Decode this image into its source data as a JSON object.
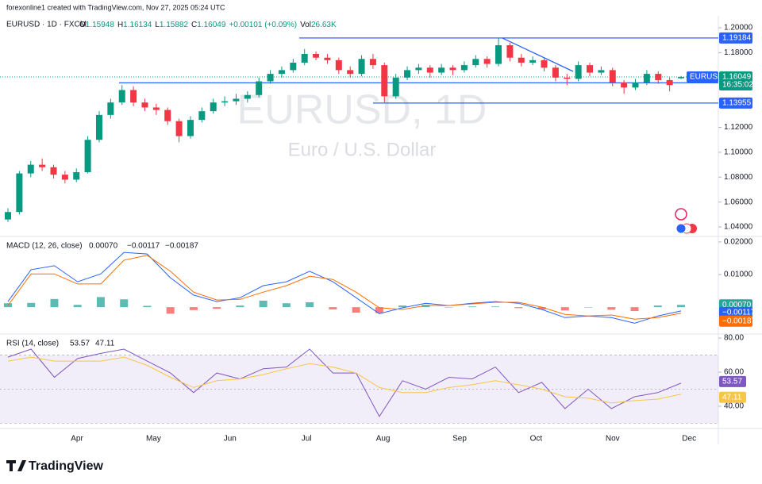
{
  "header": {
    "credit": "forexonline1 created with TradingView.com, Nov 27, 2025 05:24 UTC",
    "symbol_line": "EURUSD · 1D · FXCM",
    "ohlc": [
      "O",
      "1.15948",
      "H",
      "1.16134",
      "L",
      "1.15882",
      "C",
      "1.16049"
    ],
    "change": "+0.00101 (+0.09%)",
    "vol_label": "Vol",
    "vol": "26.63K",
    "logo": "TradingView"
  },
  "chart_data": [
    {
      "type": "candlestick",
      "title": "EURUSD, 1D",
      "subtitle": "Euro / U.S. Dollar",
      "symbol_label": "EURUSD",
      "up_color": "#089981",
      "down_color": "#f23645",
      "level_color": "#2962ff",
      "ylim": [
        1.033,
        1.2096
      ],
      "yticks": [
        {
          "value": 1.2,
          "label": "1.20000"
        },
        {
          "value": 1.18,
          "label": "1.18000"
        },
        {
          "value": 1.12,
          "label": "1.12000"
        },
        {
          "value": 1.1,
          "label": "1.10000"
        },
        {
          "value": 1.08,
          "label": "1.08000"
        },
        {
          "value": 1.06,
          "label": "1.06000"
        },
        {
          "value": 1.04,
          "label": "1.04000"
        }
      ],
      "x_labels": [
        "Apr",
        "May",
        "Jun",
        "Jul",
        "Aug",
        "Sep",
        "Oct",
        "Nov",
        "Dec"
      ],
      "levels": [
        1.19184,
        1.15581,
        1.13955
      ],
      "last_price": 1.16049,
      "countdown": "16:35:02",
      "ohlc": [
        [
          1.046,
          1.055,
          1.044,
          1.052
        ],
        [
          1.052,
          1.085,
          1.05,
          1.083
        ],
        [
          1.083,
          1.093,
          1.08,
          1.09
        ],
        [
          1.09,
          1.095,
          1.085,
          1.088
        ],
        [
          1.088,
          1.09,
          1.079,
          1.082
        ],
        [
          1.082,
          1.085,
          1.075,
          1.078
        ],
        [
          1.078,
          1.087,
          1.076,
          1.084
        ],
        [
          1.084,
          1.113,
          1.083,
          1.11
        ],
        [
          1.11,
          1.133,
          1.108,
          1.13
        ],
        [
          1.13,
          1.143,
          1.127,
          1.14
        ],
        [
          1.14,
          1.154,
          1.138,
          1.15
        ],
        [
          1.15,
          1.153,
          1.137,
          1.14
        ],
        [
          1.14,
          1.143,
          1.133,
          1.136
        ],
        [
          1.136,
          1.139,
          1.13,
          1.134
        ],
        [
          1.134,
          1.136,
          1.122,
          1.125
        ],
        [
          1.125,
          1.127,
          1.108,
          1.113
        ],
        [
          1.113,
          1.129,
          1.111,
          1.126
        ],
        [
          1.126,
          1.136,
          1.124,
          1.133
        ],
        [
          1.133,
          1.143,
          1.131,
          1.14
        ],
        [
          1.14,
          1.145,
          1.137,
          1.141
        ],
        [
          1.141,
          1.147,
          1.138,
          1.143
        ],
        [
          1.143,
          1.149,
          1.14,
          1.146
        ],
        [
          1.146,
          1.16,
          1.144,
          1.157
        ],
        [
          1.157,
          1.166,
          1.155,
          1.163
        ],
        [
          1.163,
          1.169,
          1.16,
          1.166
        ],
        [
          1.166,
          1.175,
          1.164,
          1.172
        ],
        [
          1.172,
          1.183,
          1.17,
          1.179
        ],
        [
          1.179,
          1.181,
          1.174,
          1.176
        ],
        [
          1.176,
          1.179,
          1.171,
          1.174
        ],
        [
          1.174,
          1.176,
          1.163,
          1.166
        ],
        [
          1.166,
          1.169,
          1.16,
          1.163
        ],
        [
          1.163,
          1.178,
          1.161,
          1.175
        ],
        [
          1.175,
          1.179,
          1.167,
          1.17
        ],
        [
          1.17,
          1.172,
          1.14,
          1.145
        ],
        [
          1.145,
          1.163,
          1.143,
          1.16
        ],
        [
          1.16,
          1.169,
          1.158,
          1.166
        ],
        [
          1.166,
          1.171,
          1.163,
          1.168
        ],
        [
          1.168,
          1.17,
          1.16,
          1.164
        ],
        [
          1.164,
          1.171,
          1.162,
          1.168
        ],
        [
          1.168,
          1.17,
          1.162,
          1.166
        ],
        [
          1.166,
          1.173,
          1.164,
          1.17
        ],
        [
          1.17,
          1.178,
          1.168,
          1.175
        ],
        [
          1.175,
          1.177,
          1.168,
          1.171
        ],
        [
          1.171,
          1.192,
          1.169,
          1.186
        ],
        [
          1.186,
          1.188,
          1.173,
          1.176
        ],
        [
          1.176,
          1.179,
          1.169,
          1.172
        ],
        [
          1.172,
          1.177,
          1.17,
          1.174
        ],
        [
          1.174,
          1.176,
          1.165,
          1.168
        ],
        [
          1.168,
          1.17,
          1.157,
          1.16
        ],
        [
          1.16,
          1.163,
          1.154,
          1.159
        ],
        [
          1.159,
          1.173,
          1.157,
          1.17
        ],
        [
          1.17,
          1.172,
          1.161,
          1.164
        ],
        [
          1.164,
          1.169,
          1.162,
          1.166
        ],
        [
          1.166,
          1.168,
          1.153,
          1.156
        ],
        [
          1.156,
          1.158,
          1.147,
          1.152
        ],
        [
          1.152,
          1.159,
          1.15,
          1.156
        ],
        [
          1.156,
          1.166,
          1.154,
          1.163
        ],
        [
          1.163,
          1.165,
          1.155,
          1.158
        ],
        [
          1.158,
          1.16,
          1.149,
          1.154
        ],
        [
          1.15948,
          1.16134,
          1.15882,
          1.16049
        ]
      ]
    },
    {
      "type": "macd",
      "title": "MACD (12, 26, close)",
      "readouts": [
        "0.00070",
        "−0.00117",
        "−0.00187"
      ],
      "ylim": [
        -0.008,
        0.0212
      ],
      "yticks": [
        {
          "value": 0.02,
          "label": "0.02000"
        },
        {
          "value": 0.01,
          "label": "0.01000"
        }
      ],
      "series": [
        {
          "kind": "histogram",
          "color": "#26a69a",
          "negative_color": "#ff5252",
          "values": [
            0.0012,
            0.0013,
            0.0025,
            0.0007,
            0.0031,
            0.0024,
            0.0004,
            -0.002,
            -0.0009,
            -0.0005,
            0.0005,
            0.002,
            0.0012,
            0.0015,
            -0.0007,
            -0.0017,
            -0.0018,
            0.0005,
            0.0007,
            0,
            0.0002,
            0.0002,
            -0.0003,
            -0.0007,
            -0.001,
            0,
            -0.0008,
            -0.0012,
            0.0005,
            0.0007
          ]
        },
        {
          "kind": "line",
          "color": "#2962ff",
          "values": [
            0.0017,
            0.0115,
            0.0127,
            0.0078,
            0.0102,
            0.0168,
            0.0163,
            0.009,
            0.0037,
            0.0017,
            0.0029,
            0.0066,
            0.0078,
            0.011,
            0.0078,
            0.0029,
            -0.002,
            -0.0002,
            0.0012,
            0.0005,
            0.0012,
            0.0017,
            0.0012,
            -0.0007,
            -0.0032,
            -0.0027,
            -0.0032,
            -0.0049,
            -0.0027,
            -0.00117
          ]
        },
        {
          "kind": "line",
          "color": "#ff6d00",
          "values": [
            0.0005,
            0.0102,
            0.0102,
            0.0071,
            0.0071,
            0.0144,
            0.0159,
            0.011,
            0.0046,
            0.0022,
            0.0024,
            0.0046,
            0.0066,
            0.0095,
            0.0085,
            0.0046,
            -0.0002,
            -0.0007,
            0.0005,
            0.0005,
            0.001,
            0.0015,
            0.0015,
            0,
            -0.0022,
            -0.0027,
            -0.0024,
            -0.0037,
            -0.0032,
            -0.00187
          ]
        }
      ]
    },
    {
      "type": "rsi",
      "title": "RSI (14, close)",
      "readouts": [
        "53.57",
        "47.11"
      ],
      "ylim": [
        27.9,
        81.9
      ],
      "yticks": [
        {
          "value": 80,
          "label": "80.00"
        },
        {
          "value": 60,
          "label": "60.00"
        },
        {
          "value": 40,
          "label": "40.00"
        }
      ],
      "band": [
        30,
        70
      ],
      "midline": 50,
      "series": [
        {
          "kind": "line",
          "color": "#7e57c2",
          "values": [
            68.8,
            73.5,
            57,
            68,
            71,
            73.5,
            66.5,
            59.5,
            48,
            59.5,
            56,
            62,
            63,
            73.5,
            59.5,
            59.5,
            34,
            55,
            50,
            57,
            56,
            63,
            48,
            54,
            38.6,
            50,
            38.6,
            45.6,
            48,
            53.57
          ]
        },
        {
          "kind": "line",
          "color": "#f7c548",
          "values": [
            66.5,
            68.8,
            66.5,
            66.5,
            66.5,
            68.8,
            64,
            57,
            51,
            55,
            56,
            58.6,
            62,
            65,
            63,
            59.5,
            51,
            48,
            48,
            51,
            52.6,
            55,
            52.6,
            50,
            45.6,
            44.7,
            41.9,
            43.3,
            44.2,
            47.11
          ]
        }
      ]
    }
  ]
}
